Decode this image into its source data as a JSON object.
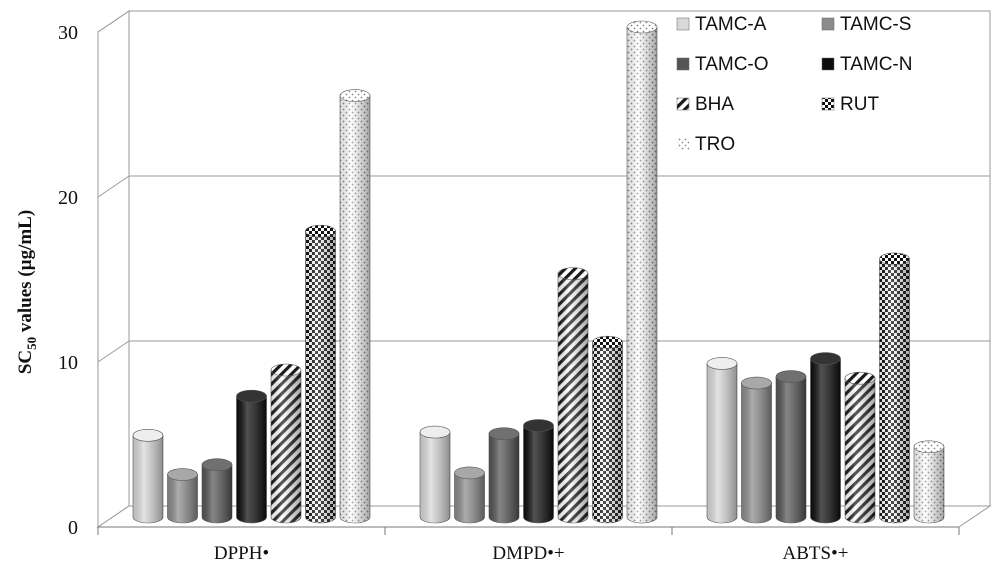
{
  "chart_data": {
    "type": "bar",
    "categories": [
      "DPPH•",
      "DMPD•+",
      "ABTS•+"
    ],
    "series": [
      {
        "name": "TAMC-A",
        "values": [
          5.0,
          5.2,
          9.4
        ],
        "pattern": "light-solid",
        "color": "#d9d9d9"
      },
      {
        "name": "TAMC-S",
        "values": [
          2.6,
          2.7,
          8.2
        ],
        "pattern": "mid-solid",
        "color": "#8c8c8c"
      },
      {
        "name": "TAMC-O",
        "values": [
          3.2,
          5.1,
          8.6
        ],
        "pattern": "dark-solid",
        "color": "#555555"
      },
      {
        "name": "TAMC-N",
        "values": [
          7.4,
          5.6,
          9.7
        ],
        "pattern": "black-solid",
        "color": "#0d0d0d"
      },
      {
        "name": "BHA",
        "values": [
          9.0,
          14.9,
          8.5
        ],
        "pattern": "diagonal-stripes",
        "color": "#222222"
      },
      {
        "name": "RUT",
        "values": [
          17.5,
          10.7,
          15.8
        ],
        "pattern": "checker",
        "color": "#111111"
      },
      {
        "name": "TRO",
        "values": [
          25.8,
          30.0,
          4.3
        ],
        "pattern": "dots",
        "color": "#bdbdbd"
      }
    ],
    "ylabel": "SC50 values (µg/mL)",
    "ylabel_main": "SC",
    "ylabel_sub": "50",
    "ylabel_rest": " values (µg/mL)",
    "yticks": [
      "0",
      "10",
      "20",
      "30"
    ],
    "ylim": [
      0,
      30
    ],
    "grid": true,
    "legend_position": "top-right",
    "style": "3d-cylinder"
  }
}
